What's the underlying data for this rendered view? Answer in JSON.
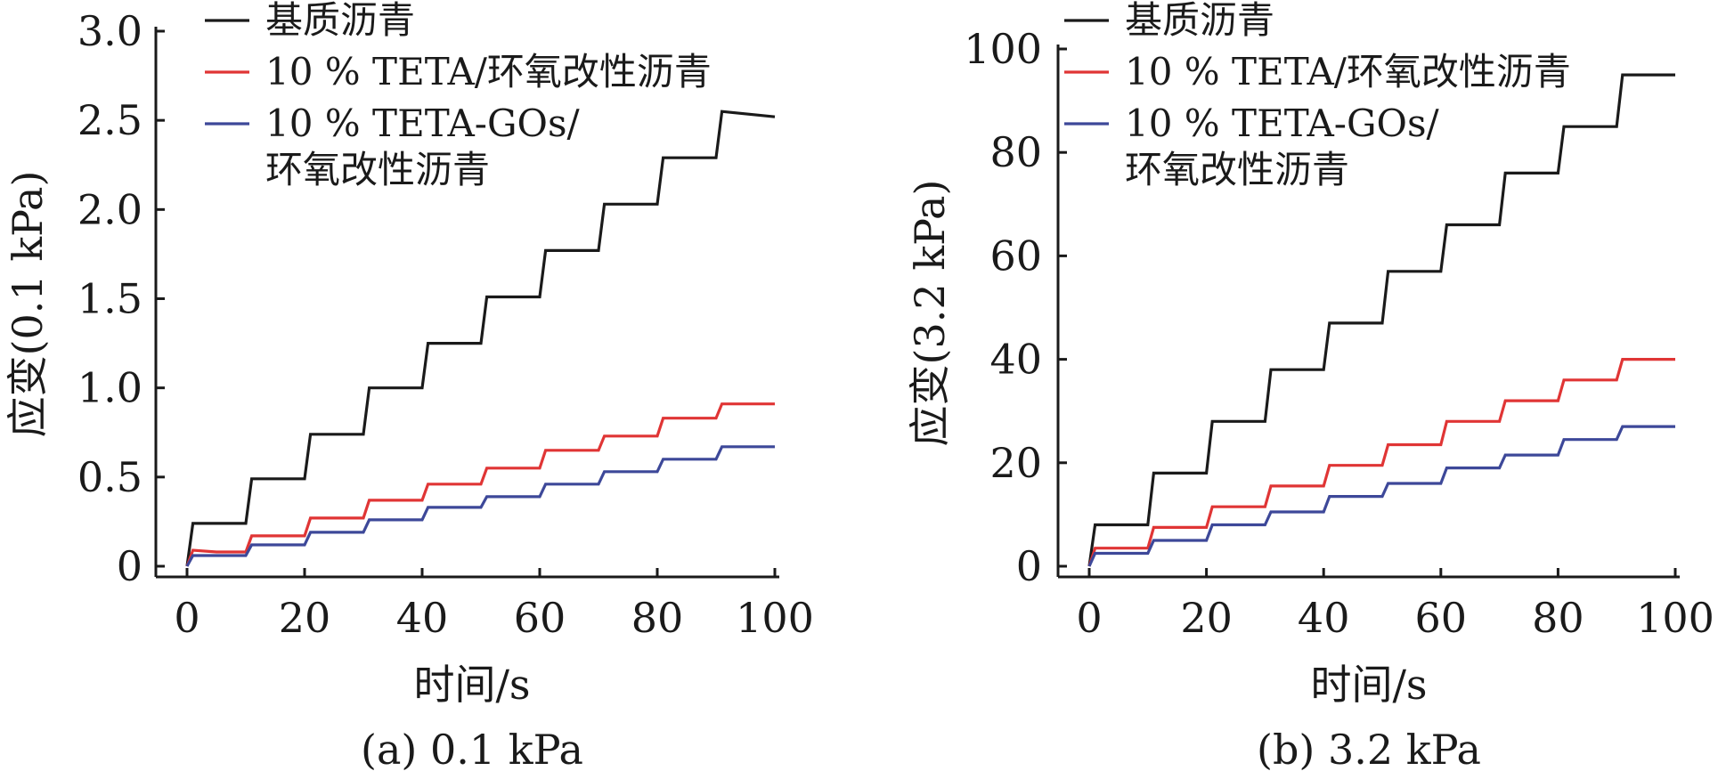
{
  "chart_data": [
    {
      "type": "line",
      "caption": "(a) 0.1 kPa",
      "xlabel": "时间/s",
      "ylabel": "应变(0.1 kPa)",
      "xlim": [
        0,
        100
      ],
      "ylim": [
        0,
        3.0
      ],
      "xticks": [
        "0",
        "20",
        "40",
        "60",
        "80",
        "100"
      ],
      "yticks": [
        "0",
        "0.5",
        "1.0",
        "1.5",
        "2.0",
        "2.5",
        "3.0"
      ],
      "legend_position": "top-left",
      "grid": false,
      "series": [
        {
          "name": "基质沥青",
          "color": "#1a1a1a",
          "x": [
            0,
            1,
            10,
            11,
            20,
            21,
            30,
            31,
            40,
            41,
            50,
            51,
            60,
            61,
            70,
            71,
            80,
            81,
            90,
            91,
            100
          ],
          "y": [
            0,
            0.24,
            0.24,
            0.49,
            0.49,
            0.74,
            0.74,
            1.0,
            1.0,
            1.25,
            1.25,
            1.51,
            1.51,
            1.77,
            1.77,
            2.03,
            2.03,
            2.29,
            2.29,
            2.55,
            2.52
          ]
        },
        {
          "name": "10 % TETA/环氧改性沥青",
          "color": "#e03535",
          "x": [
            0,
            1,
            5,
            10,
            11,
            20,
            21,
            30,
            31,
            40,
            41,
            50,
            51,
            60,
            61,
            70,
            71,
            80,
            81,
            90,
            91,
            100
          ],
          "y": [
            0,
            0.09,
            0.08,
            0.08,
            0.17,
            0.17,
            0.27,
            0.27,
            0.37,
            0.37,
            0.46,
            0.46,
            0.55,
            0.55,
            0.65,
            0.65,
            0.73,
            0.73,
            0.83,
            0.83,
            0.91,
            0.91
          ]
        },
        {
          "name": "10 % TETA-GOs/\n环氧改性沥青",
          "color": "#3d4899",
          "x": [
            0,
            1,
            10,
            11,
            20,
            21,
            30,
            31,
            40,
            41,
            50,
            51,
            60,
            61,
            70,
            71,
            80,
            81,
            90,
            91,
            100
          ],
          "y": [
            0,
            0.06,
            0.06,
            0.12,
            0.12,
            0.19,
            0.19,
            0.26,
            0.26,
            0.33,
            0.33,
            0.39,
            0.39,
            0.46,
            0.46,
            0.53,
            0.53,
            0.6,
            0.6,
            0.67,
            0.67
          ]
        }
      ]
    },
    {
      "type": "line",
      "caption": "(b) 3.2 kPa",
      "xlabel": "时间/s",
      "ylabel": "应变(3.2 kPa)",
      "xlim": [
        0,
        100
      ],
      "ylim": [
        0,
        100
      ],
      "xticks": [
        "0",
        "20",
        "40",
        "60",
        "80",
        "100"
      ],
      "yticks": [
        "0",
        "20",
        "40",
        "60",
        "80",
        "100"
      ],
      "legend_position": "top-left",
      "grid": false,
      "series": [
        {
          "name": "基质沥青",
          "color": "#1a1a1a",
          "x": [
            0,
            1,
            10,
            11,
            20,
            21,
            30,
            31,
            40,
            41,
            50,
            51,
            60,
            61,
            70,
            71,
            80,
            81,
            90,
            91,
            100
          ],
          "y": [
            0,
            8,
            8,
            18,
            18,
            28,
            28,
            38,
            38,
            47,
            47,
            57,
            57,
            66,
            66,
            76,
            76,
            85,
            85,
            95,
            95
          ]
        },
        {
          "name": "10 % TETA/环氧改性沥青",
          "color": "#e03535",
          "x": [
            0,
            1,
            10,
            11,
            20,
            21,
            30,
            31,
            40,
            41,
            50,
            51,
            60,
            61,
            70,
            71,
            80,
            81,
            90,
            91,
            100
          ],
          "y": [
            0,
            3.5,
            3.5,
            7.5,
            7.5,
            11.5,
            11.5,
            15.5,
            15.5,
            19.5,
            19.5,
            23.5,
            23.5,
            28,
            28,
            32,
            32,
            36,
            36,
            40,
            40
          ]
        },
        {
          "name": "10 % TETA-GOs/\n环氧改性沥青",
          "color": "#3d4899",
          "x": [
            0,
            1,
            10,
            11,
            20,
            21,
            30,
            31,
            40,
            41,
            50,
            51,
            60,
            61,
            70,
            71,
            80,
            81,
            90,
            91,
            100
          ],
          "y": [
            0,
            2.5,
            2.5,
            5,
            5,
            8,
            8,
            10.5,
            10.5,
            13.5,
            13.5,
            16,
            16,
            19,
            19,
            21.5,
            21.5,
            24.5,
            24.5,
            27,
            27
          ]
        }
      ]
    }
  ]
}
